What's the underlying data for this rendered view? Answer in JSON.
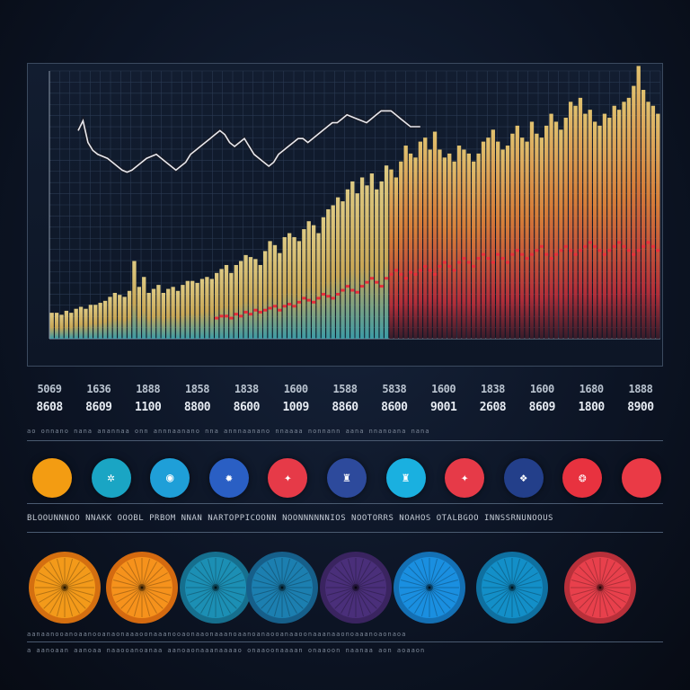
{
  "colors": {
    "background": "#0c1424",
    "grid": "#2a3a52",
    "bar_yellow": "#e9d07a",
    "bar_orange": "#e8873a",
    "bar_red": "#e8303a",
    "bar_teal": "#4fb6b8",
    "line_white": "#e8e8ee"
  },
  "chart_data": {
    "type": "bar",
    "title": "",
    "xlabel": "",
    "ylabel": "",
    "ylim": [
      0,
      100
    ],
    "grid": true,
    "bar_values": [
      4,
      4,
      3,
      5,
      4,
      6,
      7,
      6,
      8,
      8,
      9,
      10,
      12,
      14,
      13,
      12,
      15,
      30,
      17,
      22,
      14,
      16,
      18,
      14,
      16,
      17,
      15,
      18,
      20,
      20,
      19,
      21,
      22,
      21,
      24,
      26,
      28,
      24,
      28,
      30,
      33,
      32,
      31,
      28,
      35,
      40,
      38,
      34,
      42,
      44,
      42,
      40,
      46,
      50,
      48,
      44,
      52,
      56,
      58,
      62,
      60,
      66,
      70,
      64,
      72,
      68,
      74,
      66,
      70,
      78,
      76,
      72,
      80,
      88,
      84,
      82,
      90,
      92,
      86,
      95,
      86,
      82,
      84,
      80,
      88,
      86,
      84,
      80,
      84,
      90,
      92,
      96,
      90,
      86,
      88,
      94,
      98,
      92,
      90,
      100,
      94,
      92,
      98,
      104,
      100,
      96,
      102,
      110,
      108,
      112,
      104,
      106,
      100,
      98,
      104,
      102,
      108,
      106,
      110,
      112,
      118,
      128,
      116,
      110,
      108,
      104
    ],
    "red_markers": [
      0,
      0,
      0,
      0,
      0,
      0,
      0,
      0,
      0,
      0,
      0,
      0,
      0,
      0,
      0,
      0,
      0,
      0,
      0,
      0,
      0,
      0,
      0,
      0,
      0,
      0,
      0,
      0,
      0,
      0,
      0,
      0,
      0,
      0,
      2,
      3,
      3,
      2,
      4,
      3,
      5,
      4,
      6,
      5,
      6,
      7,
      8,
      6,
      8,
      9,
      8,
      10,
      12,
      11,
      10,
      12,
      14,
      13,
      12,
      14,
      16,
      18,
      16,
      15,
      18,
      20,
      22,
      20,
      18,
      22,
      24,
      26,
      24,
      22,
      25,
      24,
      26,
      28,
      26,
      24,
      28,
      30,
      28,
      26,
      30,
      32,
      30,
      28,
      32,
      34,
      32,
      30,
      34,
      32,
      30,
      34,
      36,
      34,
      32,
      34,
      36,
      38,
      34,
      32,
      34,
      36,
      38,
      36,
      34,
      36,
      38,
      40,
      38,
      36,
      34,
      36,
      38,
      40,
      38,
      36,
      34,
      36,
      38,
      40,
      38,
      36
    ],
    "line_series": [
      78,
      83,
      72,
      68,
      66,
      65,
      64,
      62,
      60,
      58,
      57,
      58,
      60,
      62,
      64,
      65,
      66,
      64,
      62,
      60,
      58,
      60,
      62,
      66,
      68,
      70,
      72,
      74,
      76,
      78,
      76,
      72,
      70,
      72,
      74,
      70,
      66,
      64,
      62,
      60,
      62,
      66,
      68,
      70,
      72,
      74,
      74,
      72,
      74,
      76,
      78,
      80,
      82,
      82,
      84,
      86,
      85,
      84,
      83,
      82,
      84,
      86,
      88,
      88,
      88,
      86,
      84,
      82,
      80,
      80,
      80
    ]
  },
  "stats": {
    "labels": [
      "5069",
      "1636",
      "1888",
      "1858",
      "1838",
      "1600",
      "1588",
      "5838",
      "1600",
      "1838",
      "1600",
      "1680",
      "1888"
    ],
    "values": [
      "8608",
      "8609",
      "1100",
      "8800",
      "8600",
      "1009",
      "8860",
      "8600",
      "9001",
      "2608",
      "8609",
      "1800",
      "8900"
    ]
  },
  "captions": {
    "under_stats": "ao onnano nana anannaa onn annnaanano nna annnaanano nnaaaa nonnann aana nnanoana nana",
    "section": "BLOOUNNNOO NNAKK OOOBL PRBOM NNAN NARTOPPICOONN NOONNNNNNIOS NOOTORRS NOAHOS OTALBGOO INNSSRNUNOOUS",
    "bottom_1": "aanaanooanoaanooanaonaaaoonaaanooaonaaonaaanoaanoanaooanaaoonaaanaaonoaaanoaonaoa",
    "bottom_2": "a aanoaan aanoaa naaooanoanaa aanoaonaaanaaaao onaaoonaaaan onaaoon naanaa aon aoaaon"
  },
  "small_dots": [
    {
      "icon": "",
      "color": "#f39c12"
    },
    {
      "icon": "✲",
      "color": "#1aa5c4"
    },
    {
      "icon": "◉",
      "color": "#1f9fd8"
    },
    {
      "icon": "✹",
      "color": "#2a5fc4"
    },
    {
      "icon": "✦",
      "color": "#e63a48"
    },
    {
      "icon": "♜",
      "color": "#2d4a9c"
    },
    {
      "icon": "♜",
      "color": "#1ab0e0"
    },
    {
      "icon": "✦",
      "color": "#e63a48"
    },
    {
      "icon": "❖",
      "color": "#233f8a"
    },
    {
      "icon": "❂",
      "color": "#e8323f"
    },
    {
      "icon": "",
      "color": "#ea3a46"
    }
  ],
  "big_discs": [
    {
      "color": "#f39a1a",
      "rim": "#d46f10"
    },
    {
      "color": "#f6921c",
      "rim": "#d46a10"
    },
    {
      "color": "#1c8fb4",
      "rim": "#166f8e"
    },
    {
      "color": "#1c7fb0",
      "rim": "#165f8a"
    },
    {
      "color": "#4a2f7a",
      "rim": "#3a2460"
    },
    {
      "color": "#1a8fe0",
      "rim": "#1470b4"
    },
    {
      "color": "#138fc8",
      "rim": "#0f70a0"
    },
    {
      "color": "#e8404c",
      "rim": "#b8303a"
    }
  ]
}
